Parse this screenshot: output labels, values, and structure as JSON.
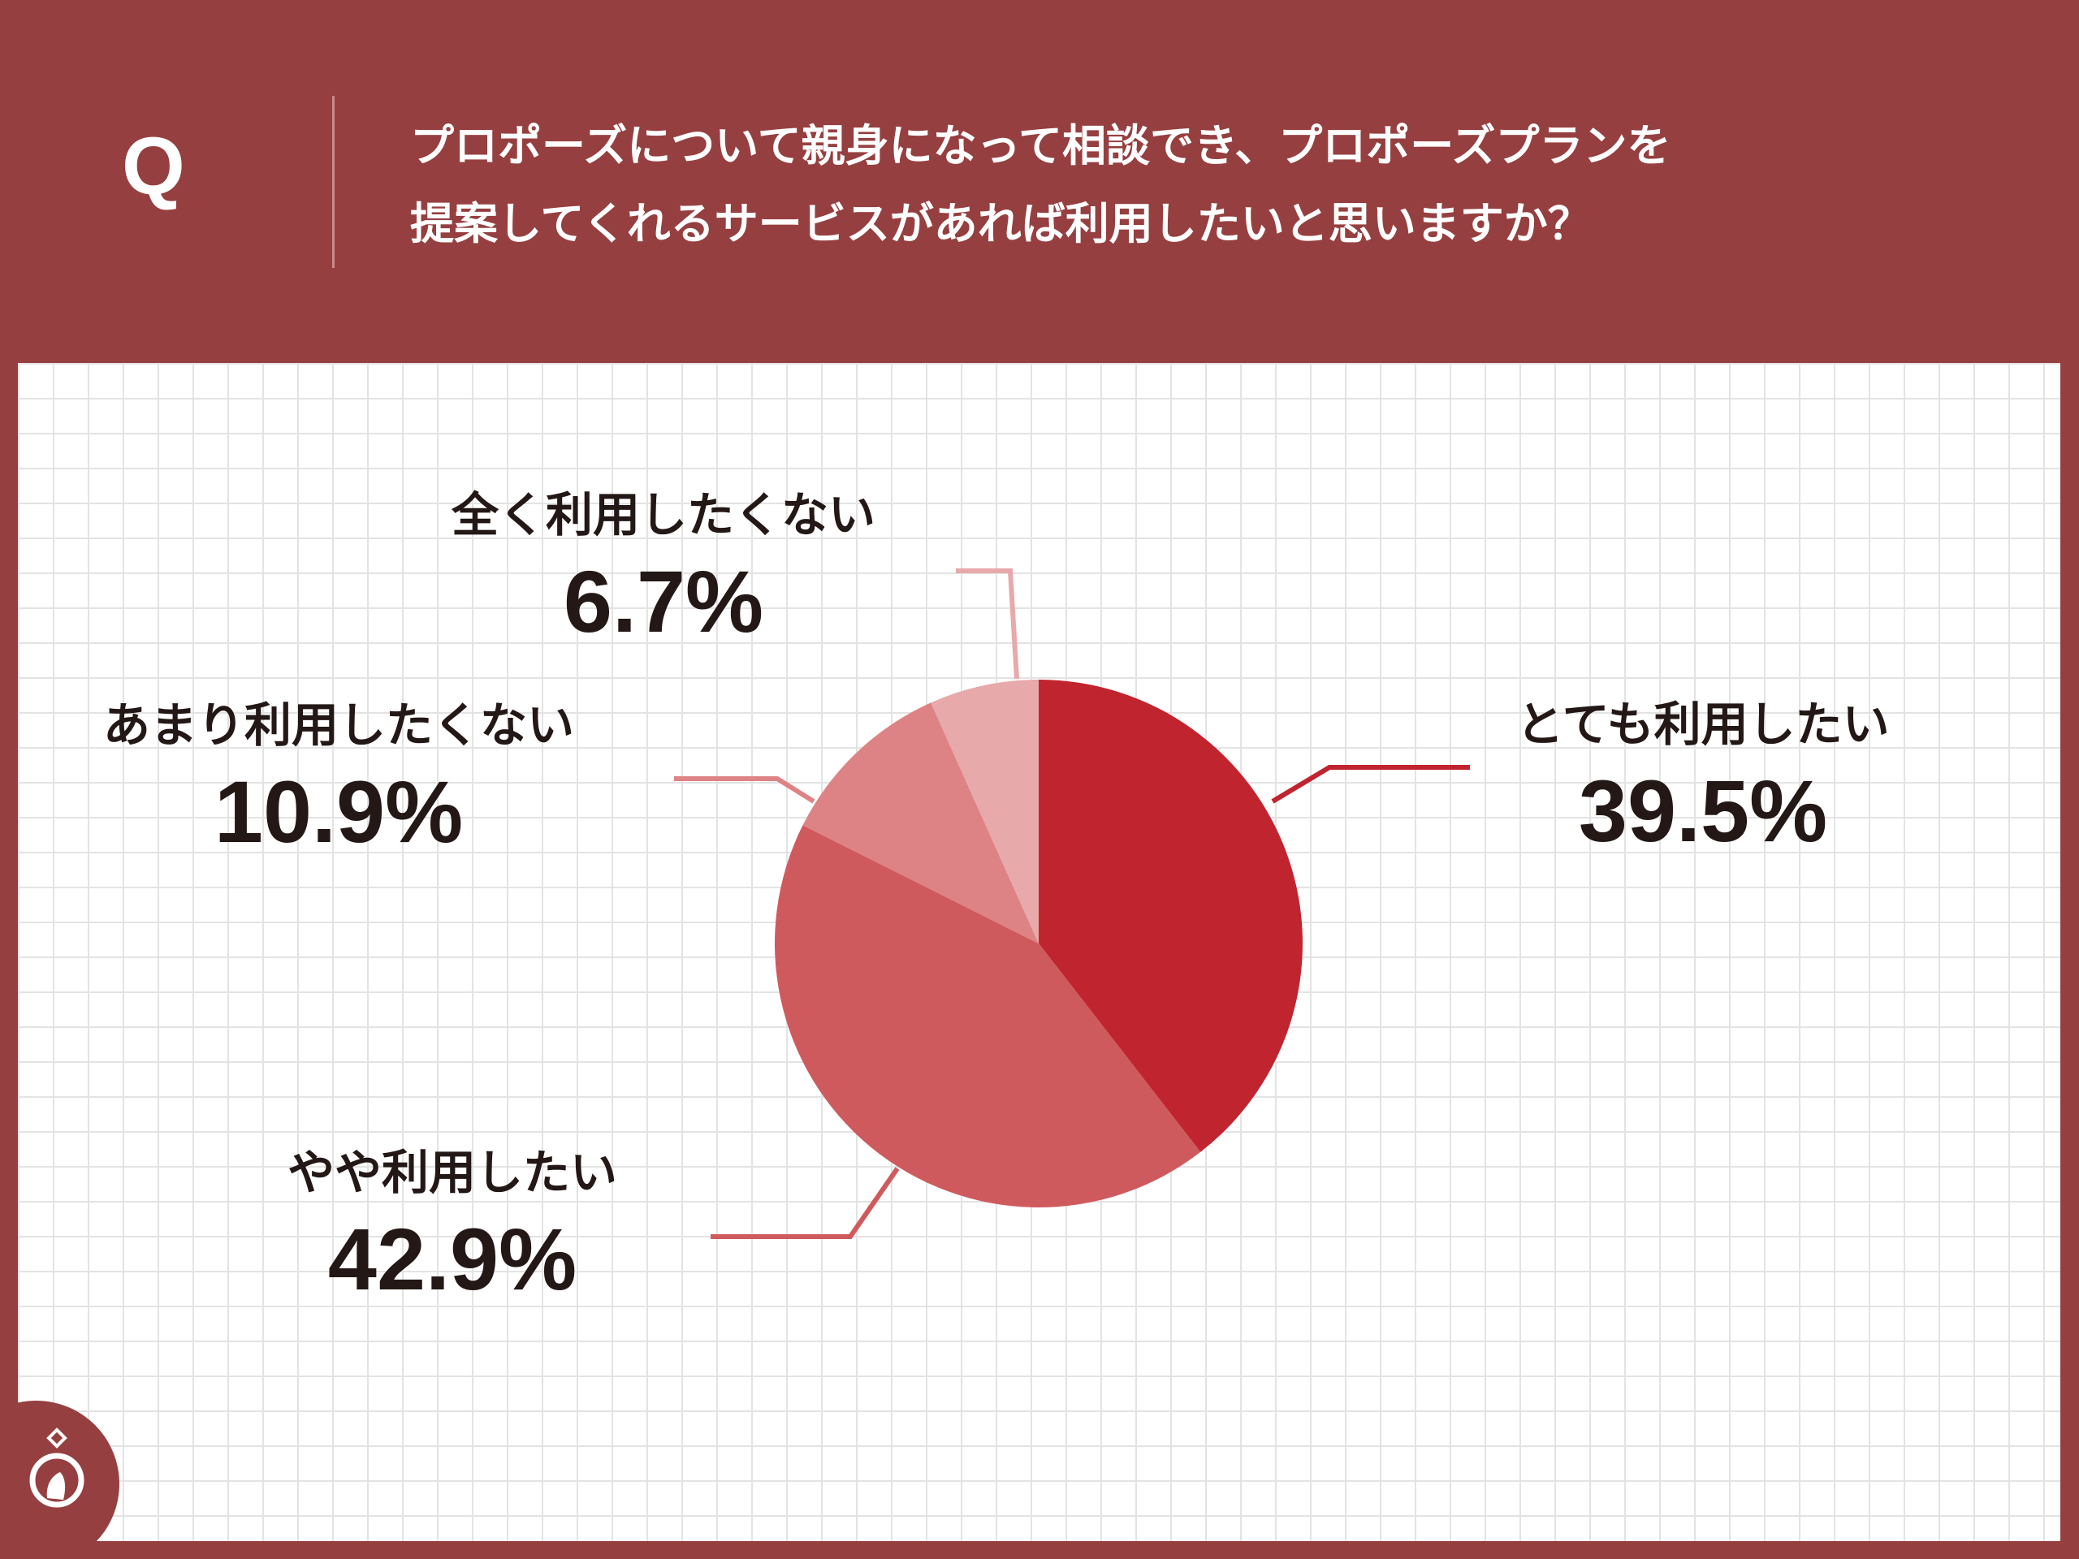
{
  "header": {
    "q_mark": "Q",
    "question_line1": "プロポーズについて親身になって相談でき、プロポーズプランを",
    "question_line2": "提案してくれるサービスがあれば利用したいと思いますか？"
  },
  "colors": {
    "background": "#963f40",
    "slices": [
      "#c0252f",
      "#cf5a5e",
      "#de8385",
      "#e8a9aa"
    ]
  },
  "chart_data": {
    "type": "pie",
    "categories": [
      "とても利用したい",
      "やや利用したい",
      "あまり利用したくない",
      "全く利用したくない"
    ],
    "values": [
      39.5,
      42.9,
      10.9,
      6.7
    ],
    "labels": [
      "39.5%",
      "42.9%",
      "10.9%",
      "6.7%"
    ],
    "start": "12 o'clock",
    "direction": "clockwise"
  },
  "logo": {
    "icon": "ring-logo-icon"
  }
}
